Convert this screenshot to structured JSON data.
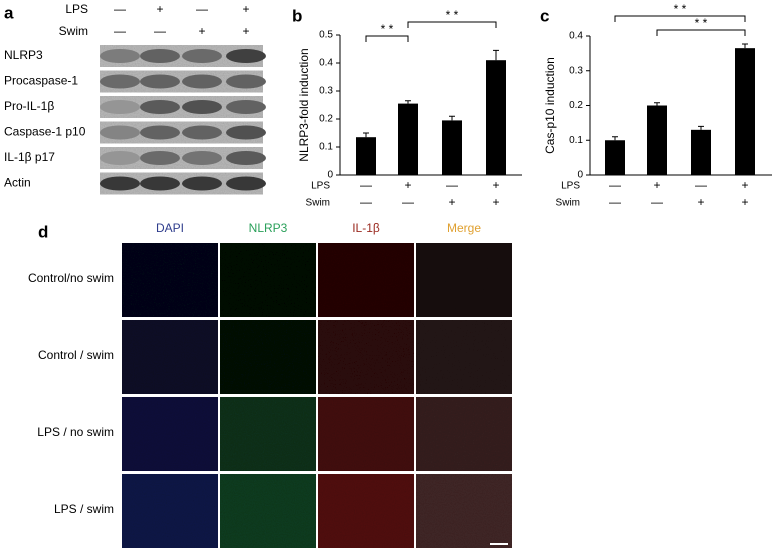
{
  "panel_a": {
    "label": "a",
    "conditions": [
      {
        "label": "LPS",
        "signs": [
          "—",
          "+",
          "—",
          "+"
        ]
      },
      {
        "label": "Swim",
        "signs": [
          "—",
          "—",
          "+",
          "+"
        ]
      }
    ],
    "proteins": [
      "NLRP3",
      "Procaspase-1",
      "Pro-IL-1β",
      "Caspase-1  p10",
      "IL-1β p17",
      "Actin"
    ]
  },
  "chart_data": [
    {
      "type": "bar",
      "panel_label": "b",
      "y_label": "NLRP3-fold induction",
      "categories": [
        null,
        null,
        null,
        null
      ],
      "values": [
        0.135,
        0.255,
        0.195,
        0.41
      ],
      "errors": [
        0.015,
        0.01,
        0.015,
        0.035
      ],
      "color": "#000000",
      "ylim": [
        0,
        0.5
      ],
      "yticks": [
        0,
        0.1,
        0.2,
        0.3,
        0.4,
        0.5
      ],
      "x_rows": [
        {
          "label": "LPS",
          "signs": [
            "—",
            "+",
            "—",
            "+"
          ]
        },
        {
          "label": "Swim",
          "signs": [
            "—",
            "—",
            "+",
            "+"
          ]
        }
      ],
      "significance": [
        "* *",
        "* *"
      ]
    },
    {
      "type": "bar",
      "panel_label": "c",
      "y_label": "Cas-p10 induction",
      "categories": [
        null,
        null,
        null,
        null
      ],
      "values": [
        0.1,
        0.2,
        0.13,
        0.365
      ],
      "errors": [
        0.01,
        0.008,
        0.01,
        0.012
      ],
      "color": "#000000",
      "ylim": [
        0,
        0.4
      ],
      "yticks": [
        0,
        0.1,
        0.2,
        0.3,
        0.4
      ],
      "x_rows": [
        {
          "label": "LPS",
          "signs": [
            "—",
            "+",
            "—",
            "+"
          ]
        },
        {
          "label": "Swim",
          "signs": [
            "—",
            "—",
            "+",
            "+"
          ]
        }
      ],
      "significance": [
        "* *",
        "* *"
      ]
    }
  ],
  "panel_d": {
    "label": "d",
    "column_headers": [
      {
        "text": "DAPI",
        "color": "#2e3c8c"
      },
      {
        "text": "NLRP3",
        "color": "#2aa05a"
      },
      {
        "text": "IL-1β",
        "color": "#9a2a20"
      },
      {
        "text": "Merge",
        "color": "#e0a030"
      }
    ],
    "row_labels": [
      "Control/no swim",
      "Control / swim",
      "LPS / no swim",
      "LPS / swim"
    ]
  }
}
